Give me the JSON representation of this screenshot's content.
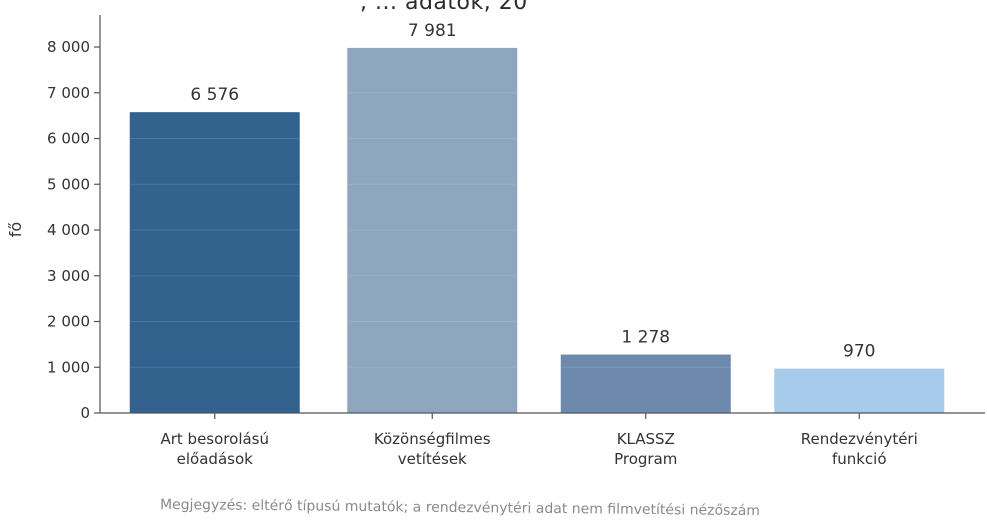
{
  "chart_data": {
    "type": "bar",
    "title_fragment": ", ... adatok, 20",
    "ylabel": "fő",
    "ylim": [
      0,
      8500
    ],
    "yticks": [
      0,
      1000,
      2000,
      3000,
      4000,
      5000,
      6000,
      7000,
      8000
    ],
    "ytick_labels": [
      "0",
      "1 000",
      "2 000",
      "3 000",
      "4 000",
      "5 000",
      "6 000",
      "7 000",
      "8 000"
    ],
    "categories": [
      [
        "Art besorolású",
        "előadások"
      ],
      [
        "Közönségfilmes",
        "vetítések"
      ],
      [
        "KLASSZ",
        "Program"
      ],
      [
        "Rendezvénytéri",
        "funkció"
      ]
    ],
    "values": [
      6576,
      7981,
      1278,
      970
    ],
    "value_labels": [
      "6 576",
      "7 981",
      "1 278",
      "970"
    ],
    "colors": [
      "#33628f",
      "#8ea7bf",
      "#6d8aad",
      "#a7cbea"
    ],
    "note": "Megjegyzés: eltérő típusú mutatók; a rendezvénytéri adat nem filmvetítési nézőszám"
  }
}
